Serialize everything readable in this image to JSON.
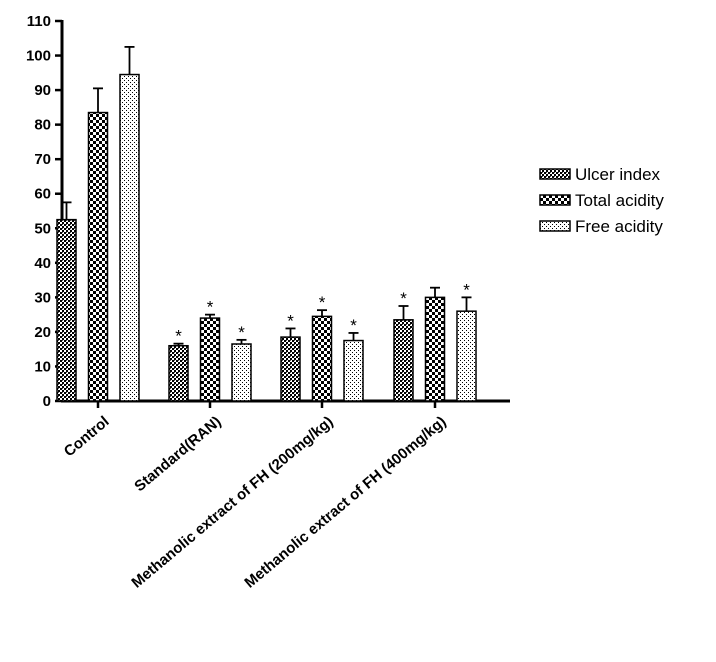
{
  "chart_data": {
    "type": "bar",
    "title": "",
    "xlabel": "",
    "ylabel": "",
    "ylim": [
      0,
      110
    ],
    "yticks": [
      0,
      10,
      20,
      30,
      40,
      50,
      60,
      70,
      80,
      90,
      100,
      110
    ],
    "categories": [
      "Control",
      "Standard(RAN)",
      "Methanolic extract of FH (200mg/kg)",
      "Methanolic extract of FH (400mg/kg)"
    ],
    "series": [
      {
        "name": "Ulcer index",
        "pattern": "crosshatch",
        "values": [
          52.5,
          16,
          18.5,
          23.5
        ],
        "errors": [
          5,
          0.6,
          2.5,
          4
        ],
        "significant": [
          false,
          true,
          true,
          true
        ]
      },
      {
        "name": "Total acidity",
        "pattern": "checker",
        "values": [
          83.5,
          24,
          24.5,
          30
        ],
        "errors": [
          7,
          1,
          1.8,
          2.8
        ],
        "significant": [
          false,
          true,
          true,
          false
        ]
      },
      {
        "name": "Free acidity",
        "pattern": "dots",
        "values": [
          94.5,
          16.5,
          17.5,
          26
        ],
        "errors": [
          8,
          1.2,
          2.2,
          4
        ],
        "significant": [
          false,
          true,
          true,
          true
        ]
      }
    ],
    "significance_marker": "*",
    "legend_position": "right",
    "grid": false
  }
}
